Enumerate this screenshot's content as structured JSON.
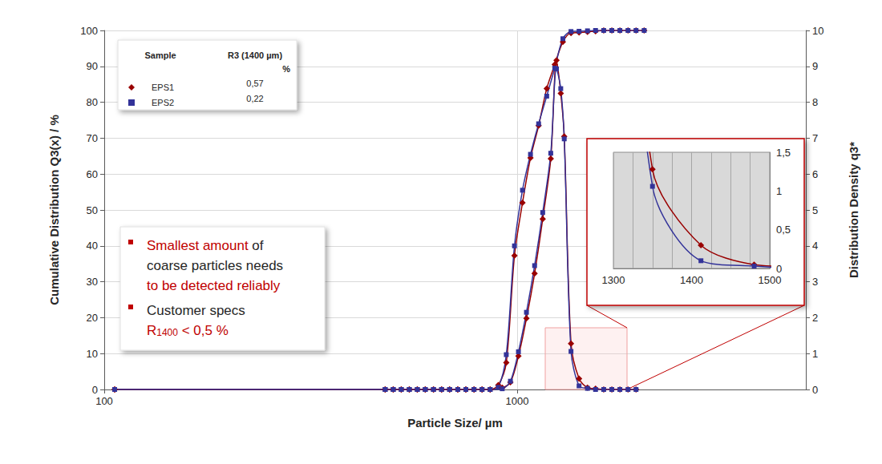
{
  "chart_data": {
    "type": "line",
    "xlabel": "Particle Size/ µm",
    "ylabel": "Cumulative Distribution Q3(x) / %",
    "y2label": "Distribution Density q3*",
    "log": "x",
    "grid": true,
    "legend": "upper left",
    "xlim": [
      100,
      5000
    ],
    "xticks": [
      100,
      1000
    ],
    "ylim": [
      0,
      100
    ],
    "yticks": [
      0,
      10,
      20,
      30,
      40,
      50,
      60,
      70,
      80,
      90,
      100
    ],
    "y2lim": [
      0,
      10
    ],
    "y2ticks": [
      0,
      1,
      2,
      3,
      4,
      5,
      6,
      7,
      8,
      9,
      10
    ],
    "series": [
      {
        "name": "EPS1",
        "color": "#990000",
        "marker": "diamond",
        "x": [
          106,
          479,
          501,
          524,
          548,
          573,
          599,
          627,
          656,
          686,
          718,
          751,
          786,
          822,
          860,
          900,
          941,
          985,
          1030,
          1077,
          1127,
          1179,
          1233,
          1290,
          1350,
          1412,
          1480,
          1548,
          1620,
          1695,
          1773,
          1855,
          1940,
          2030
        ],
        "values": [
          0,
          0,
          0,
          0,
          0,
          0,
          0,
          0,
          0,
          0,
          0,
          0,
          0,
          0,
          0,
          1.2,
          7.5,
          37.3,
          52,
          64.5,
          73.5,
          83.8,
          90.5,
          96.8,
          99.3,
          99.43,
          99.6,
          99.8,
          100,
          100,
          100,
          100,
          100,
          100
        ]
      },
      {
        "name": "EPS2",
        "color": "#333399",
        "marker": "square",
        "x": [
          106,
          479,
          501,
          524,
          548,
          573,
          599,
          627,
          656,
          686,
          718,
          751,
          786,
          822,
          860,
          900,
          941,
          985,
          1030,
          1077,
          1127,
          1179,
          1233,
          1290,
          1350,
          1412,
          1480,
          1548,
          1620,
          1695,
          1773,
          1855,
          1940,
          2030
        ],
        "values": [
          0,
          0,
          0,
          0,
          0,
          0,
          0,
          0,
          0,
          0,
          0,
          0,
          0,
          0,
          0,
          0.6,
          9.7,
          40,
          55.5,
          65.5,
          74,
          81.7,
          89.5,
          97.7,
          99.7,
          99.78,
          99.9,
          100,
          100,
          100,
          100,
          100,
          100,
          100
        ]
      },
      {
        "name": "EPS1",
        "color": "#990000",
        "marker": "diamond",
        "axis": "y2",
        "x": [
          106,
          479,
          501,
          524,
          548,
          573,
          599,
          627,
          656,
          686,
          718,
          751,
          786,
          822,
          860,
          920,
          963,
          1007,
          1053,
          1102,
          1153,
          1206,
          1245,
          1275,
          1300,
          1350,
          1412,
          1480,
          1548,
          1620,
          1695,
          1773,
          1855,
          1940
        ],
        "values": [
          0,
          0,
          0,
          0,
          0,
          0,
          0,
          0,
          0,
          0,
          0,
          0,
          0,
          0,
          0,
          0.05,
          0.2,
          0.93,
          1.98,
          3.23,
          4.75,
          6.43,
          9.17,
          8.25,
          7.05,
          1.28,
          0.3,
          0.05,
          0.02,
          0,
          0,
          0,
          0,
          0
        ]
      },
      {
        "name": "EPS2",
        "color": "#333399",
        "marker": "square",
        "axis": "y2",
        "x": [
          106,
          479,
          501,
          524,
          548,
          573,
          599,
          627,
          656,
          686,
          718,
          751,
          786,
          822,
          860,
          920,
          963,
          1007,
          1053,
          1102,
          1153,
          1206,
          1245,
          1275,
          1300,
          1350,
          1412,
          1480,
          1548,
          1620,
          1695,
          1773,
          1855,
          1940
        ],
        "values": [
          0,
          0,
          0,
          0,
          0,
          0,
          0,
          0,
          0,
          0,
          0,
          0,
          0,
          0,
          0,
          0.02,
          0.23,
          1.05,
          2.15,
          3.45,
          4.93,
          6.58,
          8.93,
          8.38,
          6.98,
          1.06,
          0.1,
          0.03,
          0,
          0,
          0,
          0,
          0,
          0
        ]
      }
    ],
    "legend_table": {
      "sample_header": "Sample",
      "value_header": "R3 (1400 µm)",
      "unit": "%",
      "values": [
        0.57,
        0.22
      ],
      "value_labels": [
        "0,57",
        "0,22"
      ]
    },
    "inset": {
      "axis": "y2",
      "grid": "x",
      "xlim": [
        1300,
        1500
      ],
      "xticks": [
        1300,
        1400,
        1500
      ],
      "ylim": [
        0,
        1.5
      ],
      "yticks": [
        0,
        {
          "value": 0.5,
          "label": "0,5"
        },
        1,
        {
          "value": 1.5,
          "label": "1,5"
        }
      ]
    },
    "annotations": [
      {
        "lines": [
          [
            {
              "text": "Smallest amount",
              "color": "#c00000"
            },
            {
              "text": " of",
              "color": "#262626"
            }
          ],
          [
            {
              "text": "coarse particles needs",
              "color": "#262626"
            }
          ],
          [
            {
              "text": "to be detected reliably",
              "color": "#c00000"
            }
          ]
        ]
      },
      {
        "lines": [
          [
            {
              "text": "Customer specs",
              "color": "#262626"
            }
          ],
          [
            {
              "text": "R",
              "subscript": "1400",
              "color": "#c00000"
            },
            {
              "text": " < 0,5 %",
              "color": "#c00000"
            }
          ]
        ]
      }
    ]
  }
}
